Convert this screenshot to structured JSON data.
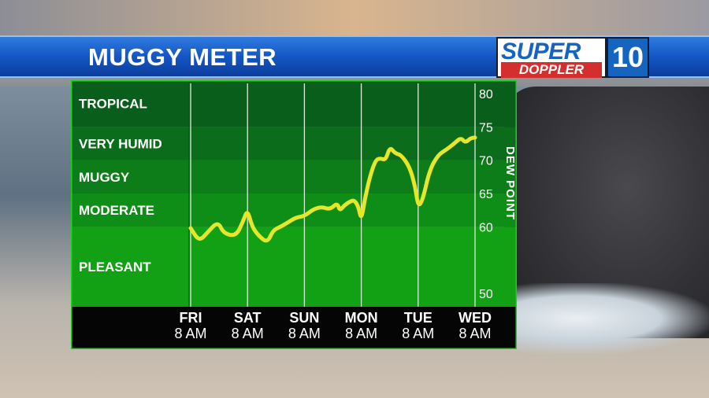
{
  "header": {
    "title": "MUGGY METER"
  },
  "logo": {
    "line1": "SUPER",
    "line2": "DOPPLER",
    "badge": "10"
  },
  "colors": {
    "title_bar": "#1456c4",
    "band_dark": "#0f5e1c",
    "band_light": "#12a014",
    "line": "#e6e62a",
    "axis_strip": "#000000"
  },
  "chart_data": {
    "type": "line",
    "title": "MUGGY METER",
    "xlabel": "",
    "ylabel": "DEW POINT",
    "ylim": [
      48,
      82
    ],
    "y_ticks": [
      50,
      60,
      65,
      70,
      75,
      80
    ],
    "x_ticks": [
      {
        "day": "FRI",
        "time": "8 AM"
      },
      {
        "day": "SAT",
        "time": "8 AM"
      },
      {
        "day": "SUN",
        "time": "8 AM"
      },
      {
        "day": "MON",
        "time": "8 AM"
      },
      {
        "day": "TUE",
        "time": "8 AM"
      },
      {
        "day": "WED",
        "time": "8 AM"
      }
    ],
    "bands": [
      {
        "label": "PLEASANT",
        "min": 48,
        "max": 60
      },
      {
        "label": "MODERATE",
        "min": 60,
        "max": 65
      },
      {
        "label": "MUGGY",
        "min": 65,
        "max": 70
      },
      {
        "label": "VERY HUMID",
        "min": 70,
        "max": 75
      },
      {
        "label": "TROPICAL",
        "min": 75,
        "max": 82
      }
    ],
    "grid": "vertical lines at each day",
    "series": [
      {
        "values": [
          [
            0.0,
            59.8
          ],
          [
            0.15,
            57.8
          ],
          [
            0.3,
            59.2
          ],
          [
            0.48,
            60.8
          ],
          [
            0.58,
            59.0
          ],
          [
            0.8,
            58.6
          ],
          [
            0.92,
            60.8
          ],
          [
            1.0,
            62.6
          ],
          [
            1.08,
            60.0
          ],
          [
            1.2,
            58.6
          ],
          [
            1.35,
            57.6
          ],
          [
            1.45,
            59.5
          ],
          [
            1.58,
            60.0
          ],
          [
            1.7,
            60.6
          ],
          [
            1.85,
            61.4
          ],
          [
            2.0,
            61.6
          ],
          [
            2.15,
            62.6
          ],
          [
            2.3,
            63.0
          ],
          [
            2.45,
            62.6
          ],
          [
            2.58,
            63.6
          ],
          [
            2.62,
            62.4
          ],
          [
            2.7,
            63.2
          ],
          [
            2.8,
            63.8
          ],
          [
            2.88,
            64.0
          ],
          [
            2.95,
            63.0
          ],
          [
            3.0,
            61.0
          ],
          [
            3.06,
            64.0
          ],
          [
            3.15,
            67.5
          ],
          [
            3.25,
            70.0
          ],
          [
            3.33,
            70.3
          ],
          [
            3.43,
            70.0
          ],
          [
            3.5,
            72.0
          ],
          [
            3.6,
            71.0
          ],
          [
            3.7,
            70.8
          ],
          [
            3.85,
            69.0
          ],
          [
            3.95,
            66.0
          ],
          [
            4.0,
            63.0
          ],
          [
            4.08,
            64.0
          ],
          [
            4.2,
            68.5
          ],
          [
            4.35,
            70.8
          ],
          [
            4.5,
            71.6
          ],
          [
            4.62,
            72.4
          ],
          [
            4.75,
            73.4
          ],
          [
            4.83,
            72.6
          ],
          [
            4.92,
            73.3
          ],
          [
            5.0,
            73.4
          ]
        ]
      }
    ]
  }
}
